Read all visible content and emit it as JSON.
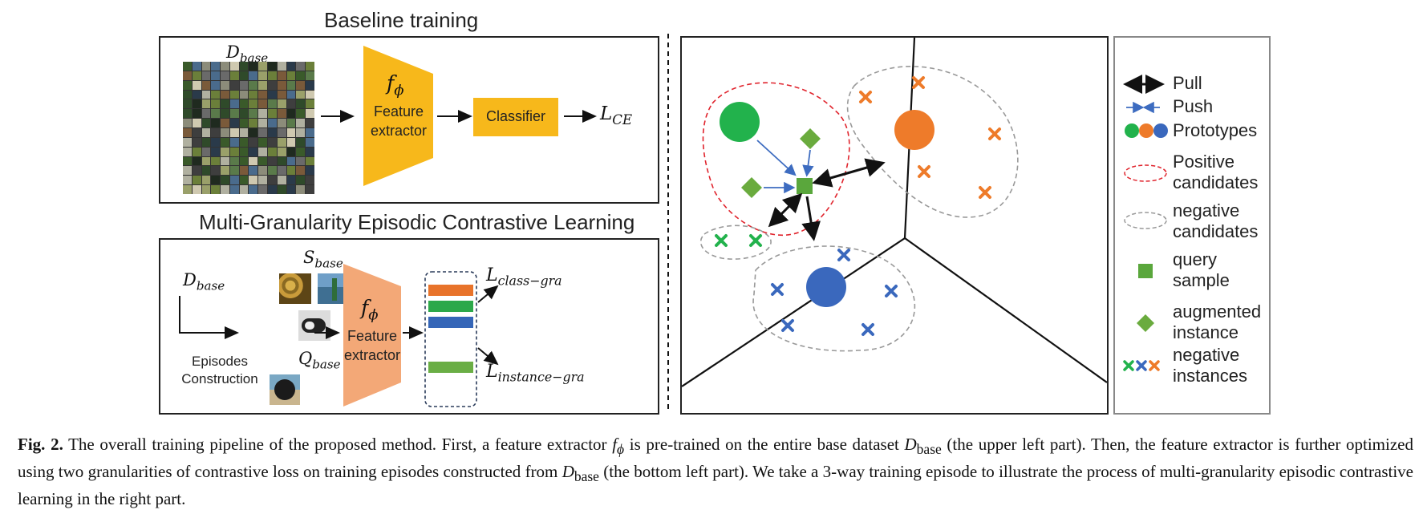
{
  "top_left": {
    "title": "Baseline training",
    "dataset_label": "D",
    "dataset_sub": "base",
    "extractor_symbol": "f",
    "extractor_sub": "ϕ",
    "extractor_line1": "Feature",
    "extractor_line2": "extractor",
    "classifier_label": "Classifier",
    "loss_label": "L",
    "loss_sub": "CE"
  },
  "bottom_left": {
    "title": "Multi-Granularity Episodic Contrastive Learning",
    "dataset_label": "D",
    "dataset_sub": "base",
    "episodes_line1": "Episodes",
    "episodes_line2": "Construction",
    "support_label": "S",
    "support_sub": "base",
    "query_label": "Q",
    "query_sub": "base",
    "extractor_symbol": "f",
    "extractor_sub": "ϕ",
    "extractor_line1": "Feature",
    "extractor_line2": "extractor",
    "loss_class_label": "L",
    "loss_class_sub": "class−gra",
    "loss_instance_label": "L",
    "loss_instance_sub": "instance−gra",
    "bar_colors": [
      "#e8732a",
      "#2ca84a",
      "#3566b8",
      "#6aae45"
    ]
  },
  "legend": {
    "pull": "Pull",
    "push": "Push",
    "prototypes": "Prototypes",
    "positive_line1": "Positive",
    "positive_line2": "candidates",
    "negative_line1": "negative",
    "negative_line2": "candidates",
    "query_line1": "query",
    "query_line2": "sample",
    "augmented_line1": "augmented",
    "augmented_line2": "instance",
    "neg_inst_line1": "negative",
    "neg_inst_line2": "instances"
  },
  "colors": {
    "yellow": "#f7b81b",
    "salmon": "#f3a877",
    "green": "#22b24c",
    "orange": "#ee7b2a",
    "blue": "#3a68bd",
    "diamond_green": "#6aab3e",
    "query_green": "#5aa73c",
    "red_dash": "#e0242d",
    "gray_dash": "#999999",
    "arrow_blue": "#3d6cc0"
  },
  "caption": {
    "fig_label": "Fig. 2.",
    "text_1": " The overall training pipeline of the proposed method. First, a feature extractor ",
    "f_symbol": "f",
    "f_sub": "ϕ",
    "text_2": " is pre-trained on the entire base dataset ",
    "d_symbol": "D",
    "d_sub": "base",
    "text_3": " (the upper left part). Then, the feature extractor is further optimized using two granularities of contrastive loss on training episodes constructed from ",
    "d2_symbol": "D",
    "d2_sub": "base",
    "text_4": " (the bottom left part). We take a 3-way training episode to illustrate the process of multi-granularity episodic contrastive learning in the right part."
  }
}
